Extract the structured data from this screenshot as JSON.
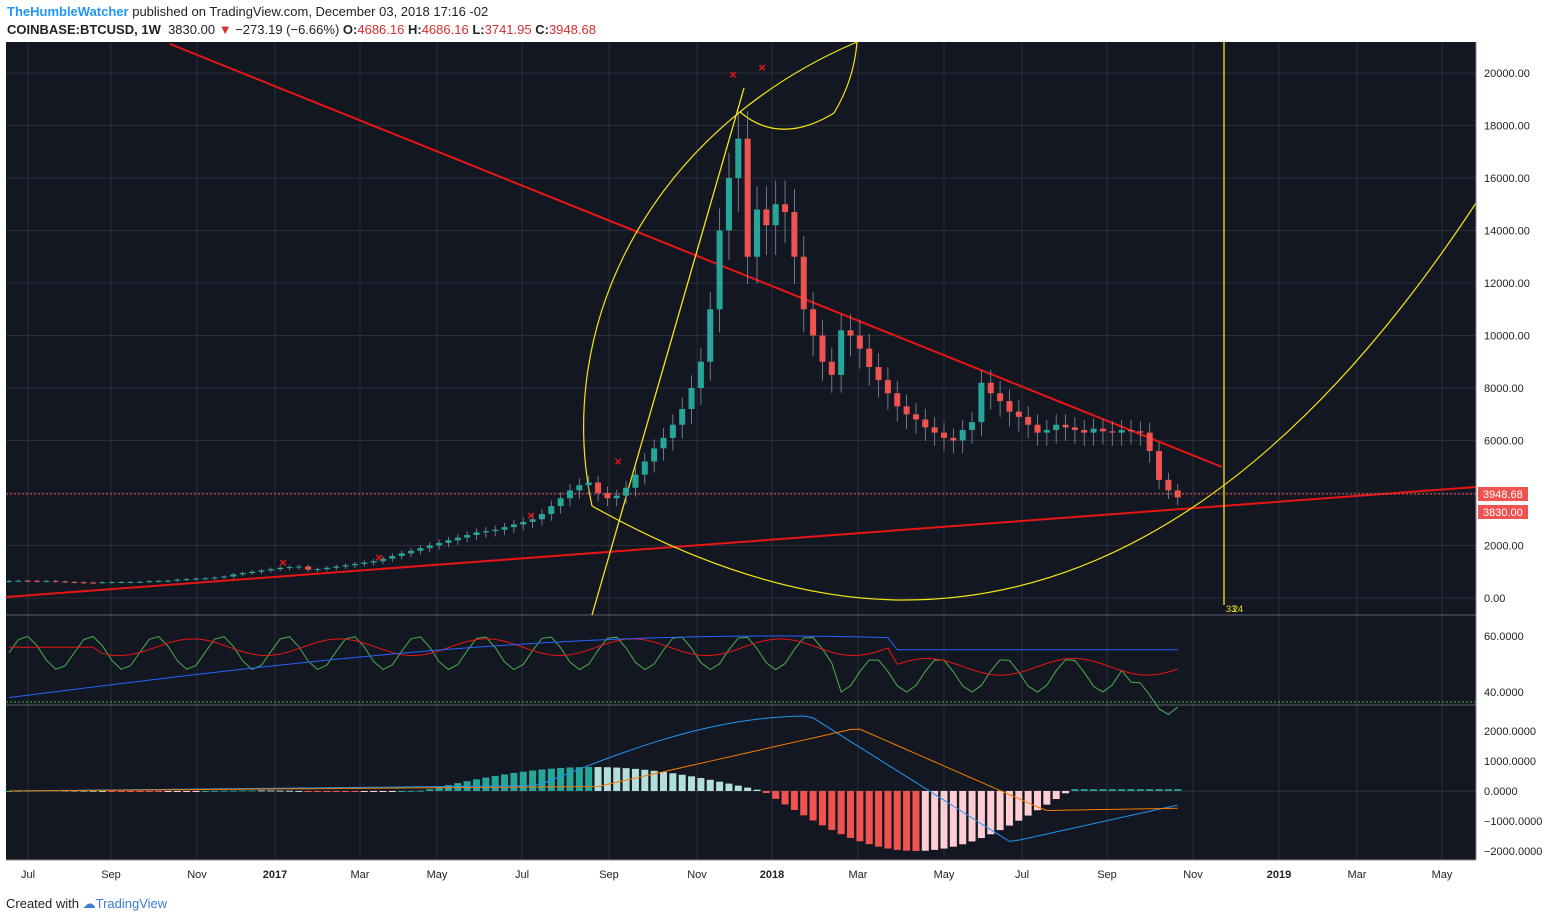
{
  "header": {
    "author": "TheHumbleWatcher",
    "published_text": "published on TradingView.com, December 03, 2018 17:16 -02",
    "symbol": "COINBASE:BTCUSD, 1W",
    "last": "3830.00",
    "change": "−273.19 (−6.66%)",
    "o_label": "O:",
    "o_val": "4686.16",
    "h_label": "H:",
    "h_val": "4686.16",
    "l_label": "L:",
    "l_val": "3741.95",
    "c_label": "C:",
    "c_val": "3948.68"
  },
  "footer": {
    "created": "Created with",
    "brand": "TradingView"
  },
  "colors": {
    "up": "#26a69a",
    "down": "#ef5350",
    "bg": "#131722",
    "trend": "#e81515",
    "gann": "#f5e514",
    "grid": "#2a2e39"
  },
  "chart_data": [
    {
      "type": "candlestick",
      "name": "price",
      "x_ticks": [
        "Jul",
        "Sep",
        "Nov",
        "2017",
        "Mar",
        "May",
        "Jul",
        "Sep",
        "Nov",
        "2018",
        "Mar",
        "May",
        "Jul",
        "Sep",
        "Nov",
        "2019",
        "Mar",
        "May"
      ],
      "y_ticks": [
        "20000.00",
        "18000.00",
        "16000.00",
        "14000.00",
        "12000.00",
        "10000.00",
        "8000.00",
        "6000.00",
        "4000.00",
        "2000.00",
        "0.00"
      ],
      "ylim": [
        -500,
        21000
      ],
      "price_labels": [
        "3948.68",
        "3830.00"
      ],
      "marker_labels": [
        "33",
        "24"
      ],
      "close_series": [
        650,
        660,
        655,
        640,
        650,
        630,
        610,
        600,
        590,
        585,
        600,
        605,
        610,
        615,
        620,
        640,
        650,
        660,
        700,
        720,
        740,
        750,
        780,
        820,
        900,
        950,
        1000,
        1050,
        1100,
        1150,
        1180,
        1200,
        1080,
        1100,
        1150,
        1200,
        1250,
        1300,
        1350,
        1400,
        1500,
        1600,
        1700,
        1800,
        1900,
        2000,
        2100,
        2200,
        2300,
        2400,
        2500,
        2550,
        2600,
        2700,
        2800,
        2900,
        3000,
        3200,
        3500,
        3800,
        4100,
        4300,
        4400,
        4000,
        3800,
        3900,
        4200,
        4700,
        5200,
        5700,
        6100,
        6600,
        7200,
        8000,
        9000,
        11000,
        14000,
        16000,
        17500,
        13000,
        14800,
        14200,
        15000,
        14700,
        13000,
        11000,
        10000,
        9000,
        8500,
        10200,
        10000,
        9500,
        8800,
        8300,
        7800,
        7300,
        7000,
        6800,
        6500,
        6300,
        6100,
        6000,
        6400,
        6700,
        8200,
        7800,
        7500,
        7100,
        6900,
        6600,
        6300,
        6400,
        6600,
        6500,
        6400,
        6300,
        6450,
        6350,
        6300,
        6400,
        6350,
        6300,
        5600,
        4500,
        4100,
        3830
      ]
    },
    {
      "type": "line",
      "name": "oscillator",
      "y_ticks": [
        "60.0000",
        "40.0000"
      ]
    },
    {
      "type": "bar",
      "name": "macd",
      "y_ticks": [
        "2000.0000",
        "1000.0000",
        "0.0000",
        "−1000.0000",
        "−2000.0000"
      ]
    }
  ]
}
